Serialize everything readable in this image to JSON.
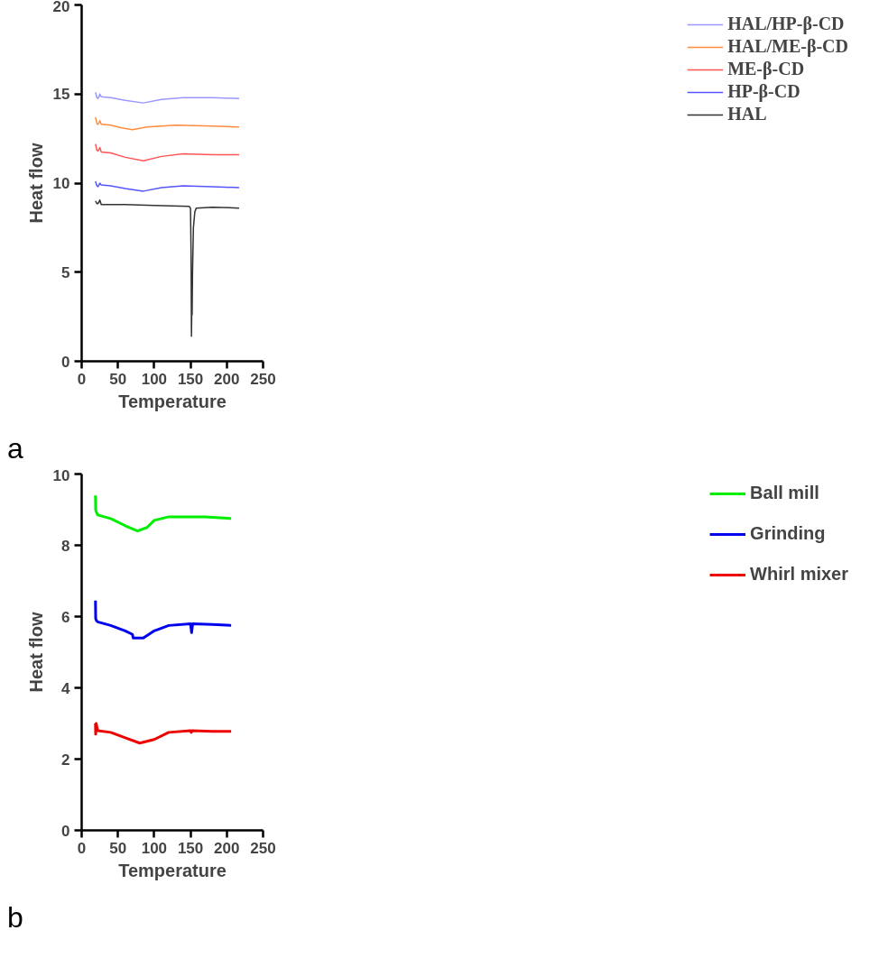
{
  "chart_data": [
    {
      "type": "line",
      "xlabel": "Temperature",
      "ylabel": "Heat flow",
      "xlim": [
        0,
        250
      ],
      "ylim": [
        0,
        20
      ],
      "xticks": [
        0,
        50,
        100,
        150,
        200,
        250
      ],
      "yticks": [
        0,
        5,
        10,
        15,
        20
      ],
      "grid": false,
      "legend": "right",
      "annotations": [
        "a"
      ],
      "series": [
        {
          "name": "HAL/HP-β-CD",
          "color": "#9999ff",
          "x": [
            19,
            21,
            22.5,
            24,
            25,
            27,
            40,
            60,
            85,
            110,
            140,
            180,
            217
          ],
          "values": [
            15.1,
            14.8,
            14.75,
            14.85,
            15.0,
            14.85,
            14.8,
            14.65,
            14.5,
            14.7,
            14.8,
            14.8,
            14.75
          ]
        },
        {
          "name": "HAL/ME-β-CD",
          "color": "#ff8c40",
          "x": [
            19,
            21,
            22.5,
            24,
            25,
            27,
            40,
            55,
            70,
            90,
            130,
            180,
            217
          ],
          "values": [
            13.7,
            13.35,
            13.3,
            13.4,
            13.5,
            13.3,
            13.25,
            13.1,
            13.0,
            13.15,
            13.25,
            13.2,
            13.15
          ]
        },
        {
          "name": "ME-β-CD",
          "color": "#ff5555",
          "x": [
            19,
            21,
            22.5,
            24,
            25,
            27,
            40,
            60,
            85,
            110,
            140,
            180,
            217
          ],
          "values": [
            12.2,
            11.85,
            11.8,
            11.9,
            12.0,
            11.75,
            11.7,
            11.45,
            11.25,
            11.5,
            11.65,
            11.6,
            11.6
          ]
        },
        {
          "name": "HP-β-CD",
          "color": "#5555ff",
          "x": [
            19,
            21,
            22.5,
            24,
            25,
            27,
            40,
            60,
            85,
            110,
            140,
            180,
            217
          ],
          "values": [
            10.1,
            9.85,
            9.8,
            9.9,
            10.0,
            9.9,
            9.85,
            9.7,
            9.55,
            9.75,
            9.85,
            9.8,
            9.75
          ]
        },
        {
          "name": "HAL",
          "color": "#333333",
          "x": [
            19,
            21,
            22.5,
            24,
            25,
            27,
            60,
            100,
            148,
            150,
            150.8,
            151.3,
            151.8,
            152.2,
            152.8,
            154,
            156,
            158,
            180,
            217
          ],
          "values": [
            9.0,
            8.85,
            8.85,
            8.95,
            9.05,
            8.8,
            8.8,
            8.75,
            8.7,
            8.6,
            6.0,
            1.4,
            3.0,
            2.6,
            5.0,
            7.5,
            8.4,
            8.6,
            8.65,
            8.6
          ]
        }
      ]
    },
    {
      "type": "line",
      "xlabel": "Temperature",
      "ylabel": "Heat flow",
      "xlim": [
        0,
        250
      ],
      "ylim": [
        0,
        10
      ],
      "xticks": [
        0,
        50,
        100,
        150,
        200,
        250
      ],
      "yticks": [
        0,
        2,
        4,
        6,
        8,
        10
      ],
      "grid": false,
      "legend": "right",
      "annotations": [
        "b"
      ],
      "series": [
        {
          "name": "Ball mill",
          "color": "#00ee00",
          "x": [
            19,
            19.3,
            20,
            22,
            40,
            60,
            77,
            90,
            100,
            120,
            140,
            170,
            206
          ],
          "values": [
            9.4,
            9.0,
            8.95,
            8.85,
            8.75,
            8.55,
            8.4,
            8.5,
            8.7,
            8.8,
            8.8,
            8.8,
            8.75
          ]
        },
        {
          "name": "Grinding",
          "color": "#0000ee",
          "x": [
            19,
            19.3,
            20,
            22,
            40,
            60,
            70,
            71,
            85,
            100,
            120,
            150,
            151.5,
            153,
            180,
            206
          ],
          "values": [
            6.45,
            5.95,
            5.9,
            5.85,
            5.75,
            5.6,
            5.5,
            5.4,
            5.4,
            5.6,
            5.75,
            5.8,
            5.55,
            5.8,
            5.78,
            5.75
          ]
        },
        {
          "name": "Whirl mixer",
          "color": "#ee0000",
          "x": [
            19,
            19.3,
            20,
            22,
            40,
            60,
            80,
            100,
            120,
            150,
            151,
            152,
            180,
            206
          ],
          "values": [
            3.0,
            2.7,
            3.0,
            2.8,
            2.75,
            2.6,
            2.45,
            2.55,
            2.75,
            2.8,
            2.75,
            2.8,
            2.78,
            2.78
          ]
        }
      ]
    }
  ]
}
